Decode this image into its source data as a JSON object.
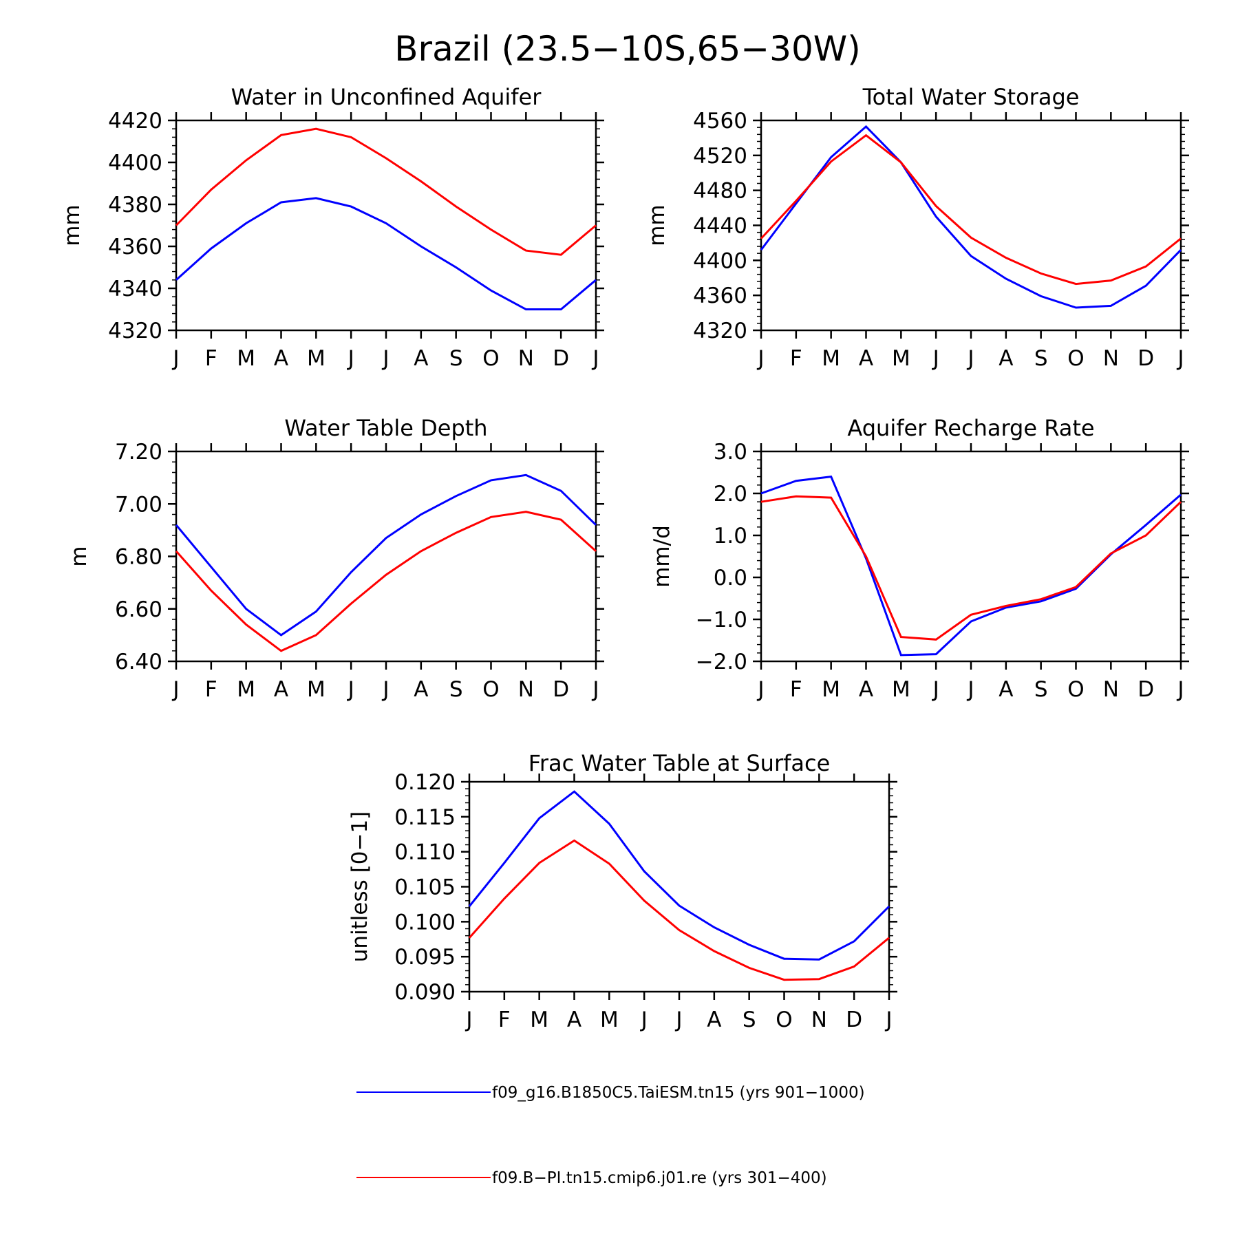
{
  "figure": {
    "title": "Brazil (23.5−10S,65−30W)"
  },
  "colors": {
    "series_1": "#0000ff",
    "series_2": "#ff0000",
    "axis": "#000000"
  },
  "legend": [
    {
      "label": "f09_g16.B1850C5.TaiESM.tn15 (yrs 901−1000)",
      "color": "#0000ff"
    },
    {
      "label": "f09.B−PI.tn15.cmip6.j01.re (yrs 301−400)",
      "color": "#ff0000"
    }
  ],
  "chart_data": [
    {
      "type": "line",
      "title": "Water in Unconfined Aquifer",
      "ylabel": "mm",
      "xlabel": "",
      "categories": [
        "J",
        "F",
        "M",
        "A",
        "M",
        "J",
        "J",
        "A",
        "S",
        "O",
        "N",
        "D",
        "J"
      ],
      "ylim": [
        4320,
        4420
      ],
      "yticks": [
        4320,
        4340,
        4360,
        4380,
        4400,
        4420
      ],
      "ytick_labels": [
        "4320",
        "4340",
        "4360",
        "4380",
        "4400",
        "4420"
      ],
      "series": [
        {
          "color": "#0000ff",
          "values": [
            4344,
            4359,
            4371,
            4381,
            4383,
            4379,
            4371,
            4360,
            4350,
            4339,
            4330,
            4330,
            4344
          ]
        },
        {
          "color": "#ff0000",
          "values": [
            4370,
            4387,
            4401,
            4413,
            4416,
            4412,
            4402,
            4391,
            4379,
            4368,
            4358,
            4356,
            4370
          ]
        }
      ],
      "grid": false
    },
    {
      "type": "line",
      "title": "Total Water Storage",
      "ylabel": "mm",
      "xlabel": "",
      "categories": [
        "J",
        "F",
        "M",
        "A",
        "M",
        "J",
        "J",
        "A",
        "S",
        "O",
        "N",
        "D",
        "J"
      ],
      "ylim": [
        4320,
        4560
      ],
      "yticks": [
        4320,
        4360,
        4400,
        4440,
        4480,
        4520,
        4560
      ],
      "ytick_labels": [
        "4320",
        "4360",
        "4400",
        "4440",
        "4480",
        "4520",
        "4560"
      ],
      "series": [
        {
          "color": "#0000ff",
          "values": [
            4412,
            4465,
            4518,
            4553,
            4512,
            4450,
            4405,
            4379,
            4359,
            4346,
            4348,
            4371,
            4412
          ]
        },
        {
          "color": "#ff0000",
          "values": [
            4425,
            4468,
            4513,
            4543,
            4512,
            4462,
            4426,
            4403,
            4385,
            4373,
            4377,
            4393,
            4425
          ]
        }
      ],
      "grid": false
    },
    {
      "type": "line",
      "title": "Water Table Depth",
      "ylabel": "m",
      "xlabel": "",
      "categories": [
        "J",
        "F",
        "M",
        "A",
        "M",
        "J",
        "J",
        "A",
        "S",
        "O",
        "N",
        "D",
        "J"
      ],
      "ylim": [
        6.4,
        7.2
      ],
      "yticks": [
        6.4,
        6.6,
        6.8,
        7.0,
        7.2
      ],
      "ytick_labels": [
        "6.40",
        "6.60",
        "6.80",
        "7.00",
        "7.20"
      ],
      "series": [
        {
          "color": "#0000ff",
          "values": [
            6.92,
            6.76,
            6.6,
            6.5,
            6.59,
            6.74,
            6.87,
            6.96,
            7.03,
            7.09,
            7.11,
            7.05,
            6.92
          ]
        },
        {
          "color": "#ff0000",
          "values": [
            6.82,
            6.67,
            6.54,
            6.44,
            6.5,
            6.62,
            6.73,
            6.82,
            6.89,
            6.95,
            6.97,
            6.94,
            6.82
          ]
        }
      ],
      "grid": false
    },
    {
      "type": "line",
      "title": "Aquifer Recharge Rate",
      "ylabel": "mm/d",
      "xlabel": "",
      "categories": [
        "J",
        "F",
        "M",
        "A",
        "M",
        "J",
        "J",
        "A",
        "S",
        "O",
        "N",
        "D",
        "J"
      ],
      "ylim": [
        -2.0,
        3.0
      ],
      "yticks": [
        -2.0,
        -1.0,
        0.0,
        1.0,
        2.0,
        3.0
      ],
      "ytick_labels": [
        "−2.0",
        "−1.0",
        "0.0",
        "1.0",
        "2.0",
        "3.0"
      ],
      "series": [
        {
          "color": "#0000ff",
          "values": [
            2.0,
            2.3,
            2.4,
            0.45,
            -1.85,
            -1.83,
            -1.05,
            -0.72,
            -0.57,
            -0.27,
            0.55,
            1.25,
            1.97
          ]
        },
        {
          "color": "#ff0000",
          "values": [
            1.8,
            1.93,
            1.9,
            0.5,
            -1.42,
            -1.48,
            -0.89,
            -0.68,
            -0.52,
            -0.23,
            0.57,
            1.0,
            1.8
          ]
        }
      ],
      "grid": false
    },
    {
      "type": "line",
      "title": "Frac Water Table at Surface",
      "ylabel": "unitless [0−1]",
      "xlabel": "",
      "categories": [
        "J",
        "F",
        "M",
        "A",
        "M",
        "J",
        "J",
        "A",
        "S",
        "O",
        "N",
        "D",
        "J"
      ],
      "ylim": [
        0.09,
        0.12
      ],
      "yticks": [
        0.09,
        0.095,
        0.1,
        0.105,
        0.11,
        0.115,
        0.12
      ],
      "ytick_labels": [
        "0.090",
        "0.095",
        "0.100",
        "0.105",
        "0.110",
        "0.115",
        "0.120"
      ],
      "series": [
        {
          "color": "#0000ff",
          "values": [
            0.1022,
            0.1084,
            0.1148,
            0.1186,
            0.114,
            0.1072,
            0.1023,
            0.0992,
            0.0967,
            0.0947,
            0.0946,
            0.0972,
            0.1022
          ]
        },
        {
          "color": "#ff0000",
          "values": [
            0.0977,
            0.1033,
            0.1084,
            0.1116,
            0.1083,
            0.103,
            0.0988,
            0.0958,
            0.0934,
            0.0917,
            0.0918,
            0.0936,
            0.0977
          ]
        }
      ],
      "grid": false
    }
  ]
}
